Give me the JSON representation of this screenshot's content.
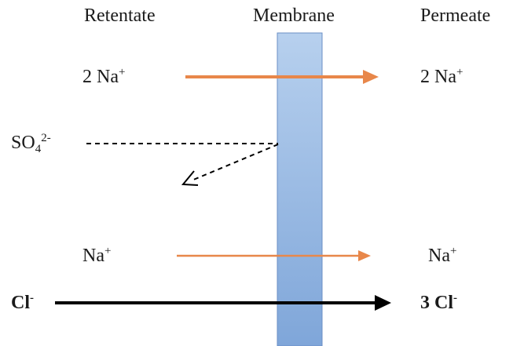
{
  "headers": {
    "retentate": "Retentate",
    "membrane": "Membrane",
    "permeate": "Permeate"
  },
  "species": {
    "sodium_left_count": "2 Na",
    "sodium_left_charge": "+",
    "sodium_right_count": "2 Na",
    "sodium_right_charge": "+",
    "sulfate_symbol": "SO",
    "sulfate_sub": "4",
    "sulfate_charge": "2-",
    "na_left": "Na",
    "na_left_charge": "+",
    "na_right": "Na",
    "na_right_charge": "+",
    "cl_left": "Cl",
    "cl_left_charge": "-",
    "cl_right": "3 Cl",
    "cl_right_charge": "-"
  },
  "colors": {
    "membrane_top": "#b7d0ee",
    "membrane_bottom": "#7fa6d9",
    "membrane_edge": "#6b8fc6",
    "sodium_arrow": "#e8874a",
    "chloride_arrow": "#000000",
    "sulfate_arrow": "#000000"
  }
}
